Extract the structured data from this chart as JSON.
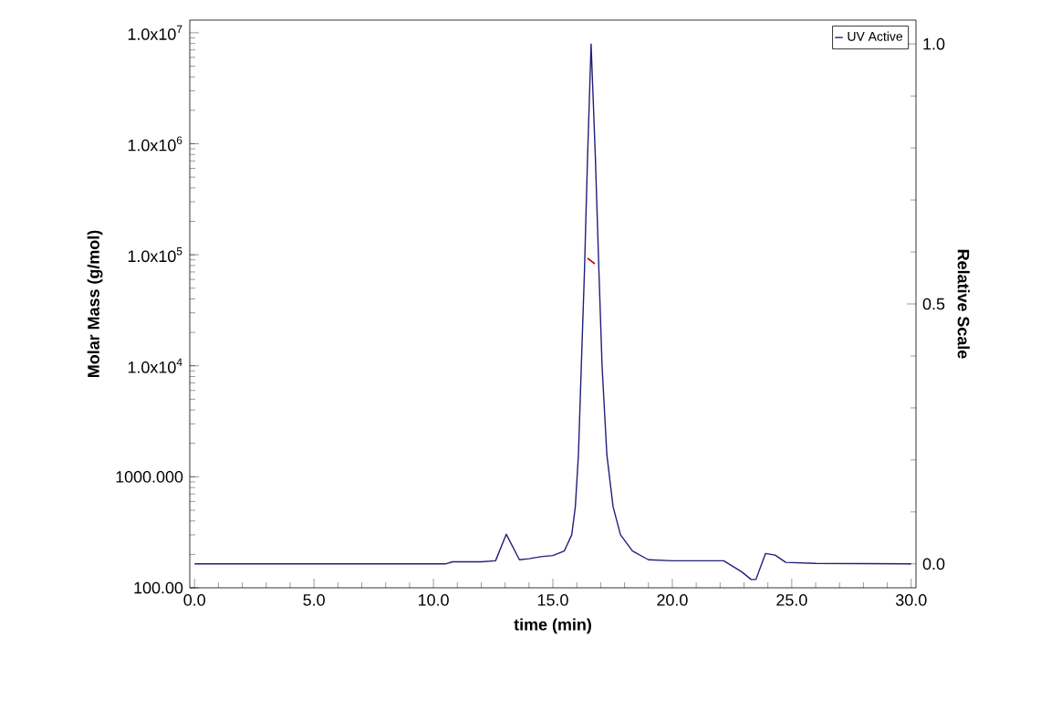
{
  "chart_data": {
    "type": "line",
    "xlabel": "time (min)",
    "ylabel": "Molar Mass (g/mol)",
    "y2label": "Relative Scale",
    "x": [
      0,
      5,
      10.5,
      10.8,
      12.0,
      12.6,
      13.05,
      13.6,
      14.0,
      14.5,
      15.0,
      15.48,
      15.79,
      15.94,
      16.07,
      16.19,
      16.32,
      16.45,
      16.6,
      16.78,
      16.93,
      17.06,
      17.26,
      17.52,
      17.83,
      18.33,
      19.0,
      20.0,
      22.15,
      22.9,
      23.3,
      23.5,
      23.9,
      24.3,
      24.75,
      26.0,
      30.0
    ],
    "series": [
      {
        "name": "UV Active",
        "color": "#1f1f7a",
        "axis": "y2",
        "values": [
          0,
          0,
          0,
          0.004,
          0.004,
          0.006,
          0.057,
          0.008,
          0.01,
          0.014,
          0.016,
          0.025,
          0.056,
          0.11,
          0.21,
          0.38,
          0.56,
          0.78,
          1.0,
          0.78,
          0.56,
          0.38,
          0.21,
          0.11,
          0.056,
          0.025,
          0.008,
          0.006,
          0.006,
          -0.015,
          -0.03,
          -0.03,
          0.02,
          0.017,
          0.003,
          0.001,
          0.0
        ]
      },
      {
        "color": "#cc0000",
        "x": [
          16.45,
          16.6,
          16.75
        ],
        "values": [
          93000,
          88000,
          83000
        ]
      }
    ],
    "xlim": [
      -0.2,
      30.2
    ],
    "xticks": [
      {
        "value": 0,
        "label": "0.0"
      },
      {
        "value": 5,
        "label": "5.0"
      },
      {
        "value": 10,
        "label": "10.0"
      },
      {
        "value": 15,
        "label": "15.0"
      },
      {
        "value": 20,
        "label": "20.0"
      },
      {
        "value": 25,
        "label": "25.0"
      },
      {
        "value": 30,
        "label": "30.0"
      }
    ],
    "ylim": [
      100,
      13000000
    ],
    "yticks": [
      {
        "value": 100,
        "label": "100.00"
      },
      {
        "value": 1000,
        "label": "1000.000"
      },
      {
        "value": 10000,
        "label": "1.0x10$^{4}$"
      },
      {
        "value": 100000,
        "label": "1.0x10$^{5}$"
      },
      {
        "value": 1000000,
        "label": "1.0x10$^{6}$"
      },
      {
        "value": 10000000,
        "label": "1.0x10$^{7}$"
      }
    ],
    "y2lim": [
      -0.046,
      1.046
    ],
    "y2ticks": [
      {
        "value": 0,
        "label": "0.0"
      },
      {
        "value": 0.5,
        "label": "0.5"
      },
      {
        "value": 1,
        "label": "1.0"
      }
    ],
    "log": "y",
    "grid": false,
    "legend": "top right",
    "marker": "none",
    "line_style": "solid"
  }
}
